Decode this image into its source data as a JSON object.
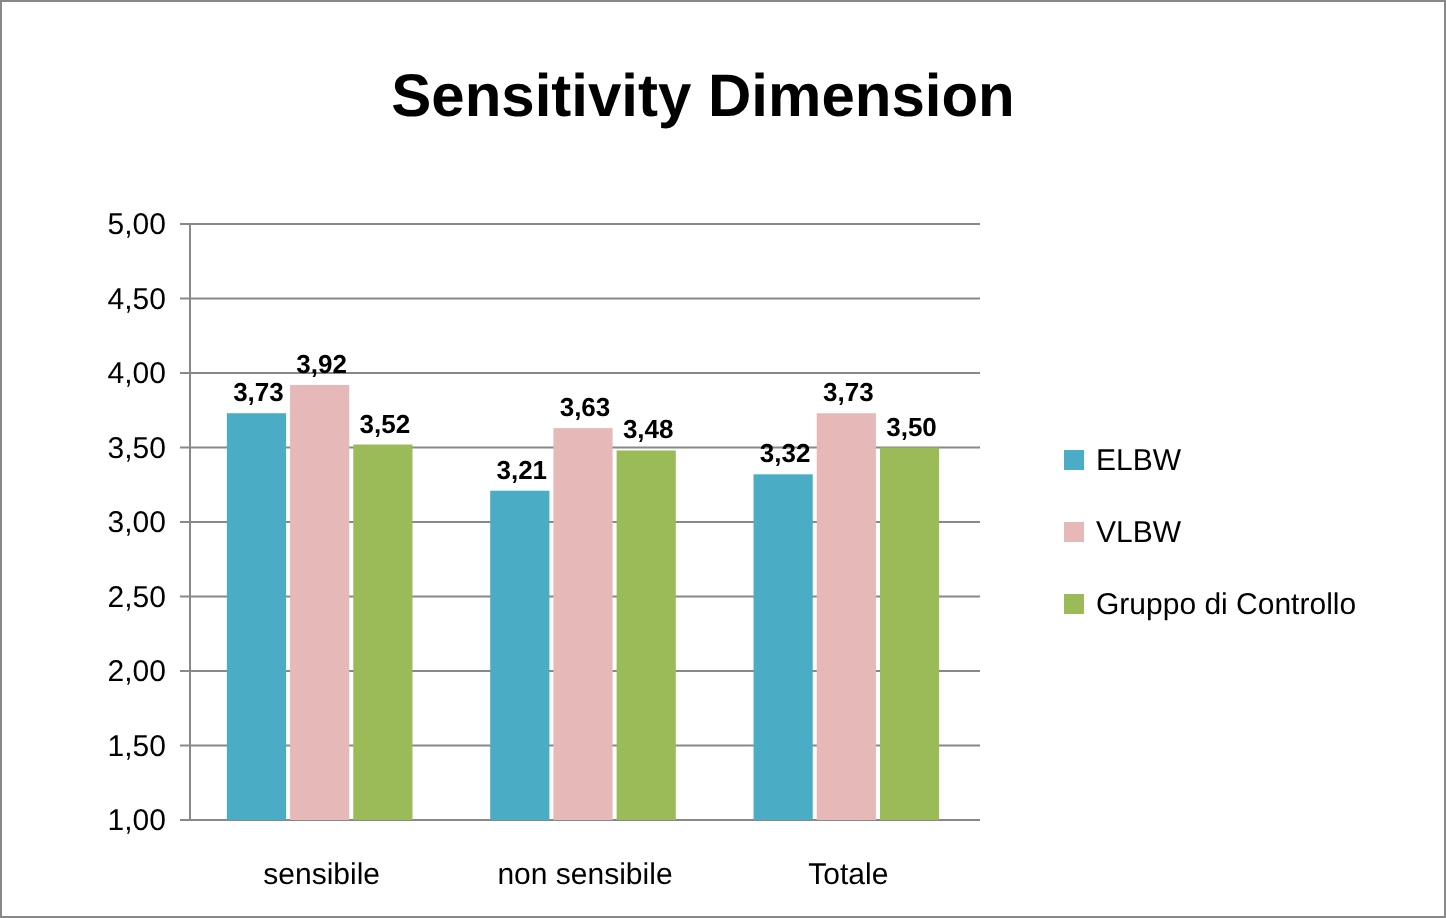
{
  "chart_data": {
    "type": "bar",
    "title": "Sensitivity Dimension",
    "categories": [
      "sensibile",
      "non sensibile",
      "Totale"
    ],
    "series": [
      {
        "name": "ELBW",
        "color": "#4bacc6",
        "values": [
          3.73,
          3.21,
          3.32
        ],
        "value_labels": [
          "3,73",
          "3,21",
          "3,32"
        ]
      },
      {
        "name": "VLBW",
        "color": "#e6b9b8",
        "values": [
          3.92,
          3.63,
          3.73
        ],
        "value_labels": [
          "3,92",
          "3,63",
          "3,73"
        ]
      },
      {
        "name": "Gruppo di Controllo",
        "color": "#9bbb59",
        "values": [
          3.52,
          3.48,
          3.5
        ],
        "value_labels": [
          "3,52",
          "3,48",
          "3,50"
        ]
      }
    ],
    "ylim": [
      1,
      5
    ],
    "yticks": [
      {
        "value": 1,
        "label": "1,00"
      },
      {
        "value": 1.5,
        "label": "1,50"
      },
      {
        "value": 2,
        "label": "2,00"
      },
      {
        "value": 2.5,
        "label": "2,50"
      },
      {
        "value": 3,
        "label": "3,00"
      },
      {
        "value": 3.5,
        "label": "3,50"
      },
      {
        "value": 4,
        "label": "4,00"
      },
      {
        "value": 4.5,
        "label": "4,50"
      },
      {
        "value": 5,
        "label": "5,00"
      }
    ],
    "grid": "y",
    "legend": "right"
  }
}
